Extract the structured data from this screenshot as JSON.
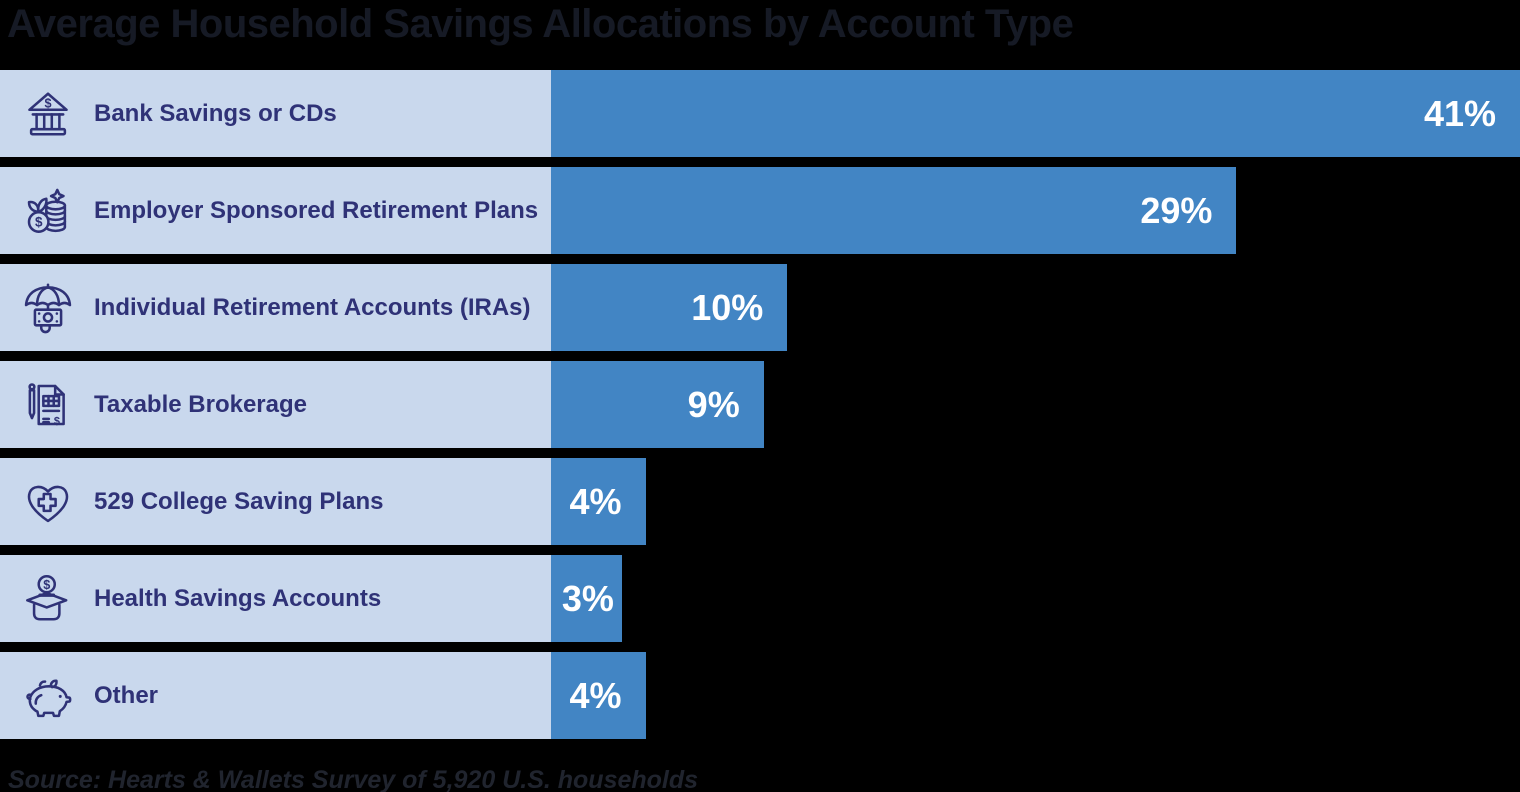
{
  "title": "Average Household Savings Allocations by Account Type",
  "source_note": "Source: Hearts & Wallets Survey of 5,920 U.S. households",
  "colors": {
    "background": "#000000",
    "bar_fill": "#4285c4",
    "label_panel": "#c9d8ed",
    "label_text": "#2f3277",
    "value_text": "#ffffff",
    "title_text": "#161a25",
    "source_text": "#20242e"
  },
  "chart_data": {
    "type": "bar",
    "orientation": "horizontal",
    "title": "Average Household Savings Allocations by Account Type",
    "categories": [
      "Bank Savings or CDs",
      "Employer Sponsored Retirement Plans",
      "Individual Retirement Accounts (IRAs)",
      "Taxable Brokerage",
      "529 College Saving Plans",
      "Health Savings Accounts",
      "Other"
    ],
    "values": [
      41,
      29,
      10,
      9,
      4,
      3,
      4
    ],
    "value_labels": [
      "41%",
      "29%",
      "10%",
      "9%",
      "4%",
      "3%",
      "4%"
    ],
    "icons": [
      "bank-icon",
      "coins-sprout-icon",
      "umbrella-money-icon",
      "document-pen-icon",
      "heart-cross-icon",
      "coin-box-icon",
      "piggy-bank-icon"
    ],
    "unit": "%",
    "xlim": [
      0,
      41
    ],
    "grid": false,
    "legend": false,
    "source": "Source: Hearts & Wallets Survey of 5,920 U.S. households"
  }
}
